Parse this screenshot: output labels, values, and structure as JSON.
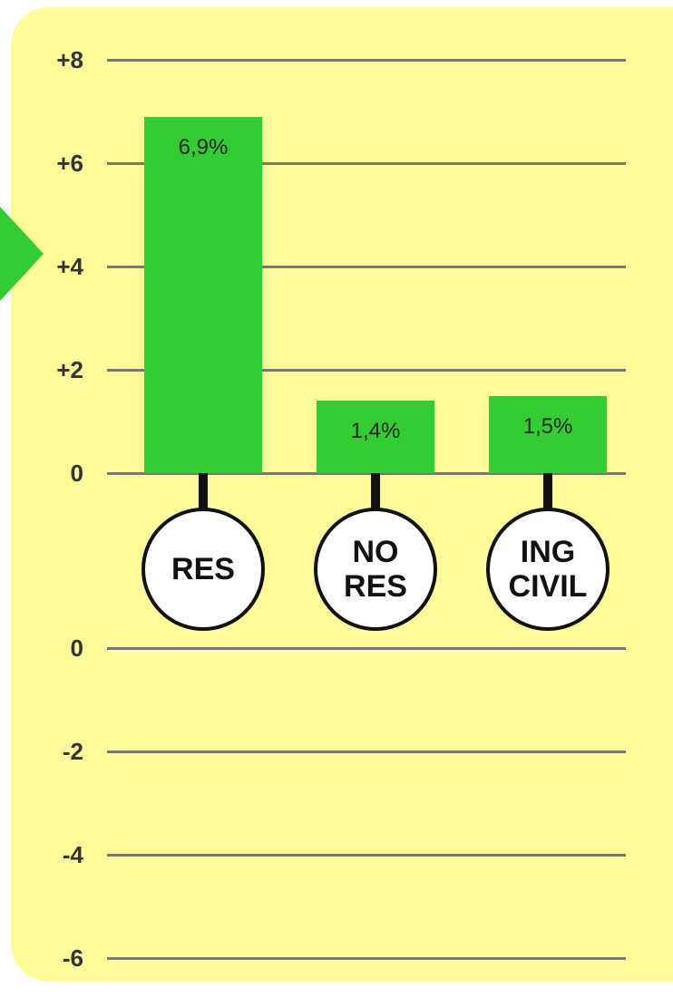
{
  "chart_data": [
    {
      "type": "bar",
      "categories": [
        "RES",
        "NO RES",
        "ING CIVIL"
      ],
      "values": [
        6.9,
        1.4,
        1.5
      ],
      "value_labels": [
        "6,9%",
        "1,4%",
        "1,5%"
      ],
      "color": "#33cc33",
      "ylim": [
        0,
        8
      ],
      "yticks": [
        {
          "value": 8,
          "label": "+8"
        },
        {
          "value": 6,
          "label": "+6"
        },
        {
          "value": 4,
          "label": "+4"
        },
        {
          "value": 2,
          "label": "+2"
        },
        0
      ],
      "grid": true
    },
    {
      "type": "bar",
      "ylim": [
        -6,
        0
      ],
      "yticks": [
        0,
        -2,
        -4,
        -6
      ],
      "grid": true
    }
  ]
}
